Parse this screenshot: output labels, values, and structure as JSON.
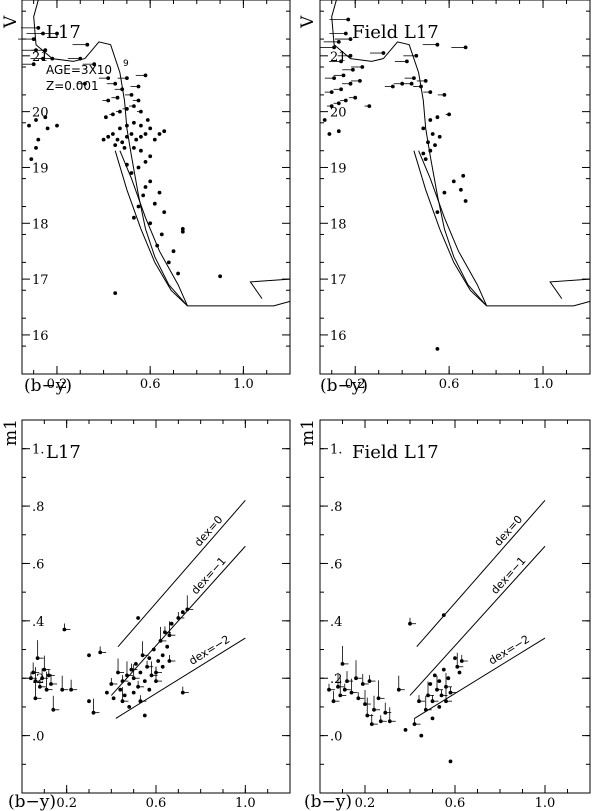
{
  "chart_data": [
    {
      "type": "scatter",
      "title": "L17",
      "annotations": [
        "AGE=3X10",
        "9",
        "Z=0.001"
      ],
      "xlabel": "(b−y)",
      "ylabel": "V",
      "xlim": [
        0.05,
        1.2
      ],
      "ylim": [
        22.0,
        15.3
      ],
      "y_inverted": true,
      "x_ticks": [
        0.2,
        0.6,
        1.0
      ],
      "y_ticks": [
        16,
        17,
        18,
        19,
        20,
        21
      ],
      "x_tick_labels": [
        "0.2",
        "0.6",
        "1.0"
      ],
      "y_tick_labels": [
        "16",
        "17",
        "18",
        "19",
        "20",
        "21"
      ],
      "isochrone": {
        "lower_ms": [
          [
            0.12,
            22.0
          ],
          [
            0.1,
            21.7
          ],
          [
            0.11,
            21.2
          ],
          [
            0.18,
            20.95
          ],
          [
            0.27,
            20.9
          ],
          [
            0.32,
            20.95
          ],
          [
            0.38,
            21.25
          ],
          [
            0.43,
            21.2
          ],
          [
            0.47,
            20.7
          ],
          [
            0.49,
            20.2
          ],
          [
            0.5,
            19.7
          ],
          [
            0.52,
            19.2
          ],
          [
            0.55,
            18.5
          ],
          [
            0.58,
            17.9
          ],
          [
            0.62,
            17.4
          ],
          [
            0.68,
            16.9
          ],
          [
            0.76,
            16.52
          ]
        ],
        "sgb_band": [
          [
            0.45,
            19.3
          ],
          [
            0.5,
            18.6
          ],
          [
            0.56,
            17.9
          ],
          [
            0.62,
            17.3
          ],
          [
            0.69,
            16.8
          ],
          [
            0.76,
            16.52
          ],
          [
            0.72,
            16.9
          ],
          [
            0.64,
            17.5
          ],
          [
            0.58,
            18.1
          ],
          [
            0.52,
            18.8
          ],
          [
            0.47,
            19.3
          ]
        ],
        "tip_branch": [
          [
            0.76,
            16.52
          ],
          [
            1.13,
            16.52
          ],
          [
            1.2,
            16.6
          ]
        ],
        "hb_hook": [
          [
            1.08,
            16.65
          ],
          [
            1.03,
            16.95
          ],
          [
            1.2,
            17.0
          ]
        ]
      },
      "points": [
        [
          0.09,
          19.15
        ],
        [
          0.11,
          19.35
        ],
        [
          0.12,
          19.5
        ],
        [
          0.08,
          19.75
        ],
        [
          0.11,
          19.85
        ],
        [
          0.15,
          19.9
        ],
        [
          0.16,
          19.7
        ],
        [
          0.2,
          19.75
        ],
        [
          0.1,
          20.85
        ],
        [
          0.14,
          20.95
        ],
        [
          0.18,
          20.95
        ],
        [
          0.11,
          21.1
        ],
        [
          0.15,
          21.1
        ],
        [
          0.1,
          21.3
        ],
        [
          0.14,
          21.4
        ],
        [
          0.2,
          21.4
        ],
        [
          0.12,
          21.5
        ],
        [
          0.32,
          20.5
        ],
        [
          0.36,
          20.85
        ],
        [
          0.3,
          20.95
        ],
        [
          0.33,
          21.2
        ],
        [
          0.42,
          20.6
        ],
        [
          0.45,
          20.5
        ],
        [
          0.45,
          16.75
        ],
        [
          0.53,
          18.1
        ],
        [
          0.55,
          18.3
        ],
        [
          0.57,
          18.5
        ],
        [
          0.6,
          18.0
        ],
        [
          0.63,
          17.6
        ],
        [
          0.65,
          17.8
        ],
        [
          0.68,
          17.3
        ],
        [
          0.7,
          17.5
        ],
        [
          0.72,
          17.1
        ],
        [
          0.74,
          17.9
        ],
        [
          0.9,
          17.05
        ],
        [
          0.74,
          17.85
        ],
        [
          0.66,
          18.2
        ],
        [
          0.62,
          18.35
        ],
        [
          0.58,
          18.65
        ],
        [
          0.6,
          18.75
        ],
        [
          0.64,
          18.55
        ],
        [
          0.5,
          19.05
        ],
        [
          0.52,
          18.9
        ],
        [
          0.55,
          19.0
        ],
        [
          0.58,
          19.1
        ],
        [
          0.6,
          19.2
        ],
        [
          0.56,
          19.3
        ],
        [
          0.53,
          19.35
        ],
        [
          0.4,
          19.5
        ],
        [
          0.42,
          19.55
        ],
        [
          0.44,
          19.6
        ],
        [
          0.46,
          19.5
        ],
        [
          0.48,
          19.45
        ],
        [
          0.5,
          19.55
        ],
        [
          0.52,
          19.6
        ],
        [
          0.54,
          19.5
        ],
        [
          0.56,
          19.55
        ],
        [
          0.58,
          19.6
        ],
        [
          0.6,
          19.7
        ],
        [
          0.62,
          19.5
        ],
        [
          0.64,
          19.6
        ],
        [
          0.66,
          19.65
        ],
        [
          0.47,
          19.7
        ],
        [
          0.5,
          19.75
        ],
        [
          0.53,
          19.8
        ],
        [
          0.56,
          19.75
        ],
        [
          0.59,
          19.85
        ],
        [
          0.45,
          19.4
        ],
        [
          0.49,
          19.35
        ],
        [
          0.41,
          19.9
        ],
        [
          0.44,
          19.95
        ],
        [
          0.47,
          20.0
        ],
        [
          0.5,
          20.05
        ],
        [
          0.53,
          20.1
        ],
        [
          0.56,
          20.0
        ],
        [
          0.42,
          20.2
        ],
        [
          0.46,
          20.25
        ],
        [
          0.52,
          20.3
        ],
        [
          0.55,
          20.2
        ],
        [
          0.48,
          20.4
        ],
        [
          0.5,
          20.6
        ],
        [
          0.55,
          20.45
        ],
        [
          0.58,
          20.65
        ]
      ]
    },
    {
      "type": "scatter",
      "title": "Field L17",
      "xlabel": "(b−y)",
      "ylabel": "V",
      "xlim": [
        0.05,
        1.2
      ],
      "ylim": [
        22.0,
        15.3
      ],
      "y_inverted": true,
      "x_ticks": [
        0.2,
        0.6,
        1.0
      ],
      "y_ticks": [
        16,
        17,
        18,
        19,
        20,
        21
      ],
      "x_tick_labels": [
        "0.2",
        "0.6",
        "1.0"
      ],
      "y_tick_labels": [
        "16",
        "17",
        "18",
        "19",
        "20",
        "21"
      ],
      "points": [
        [
          0.55,
          15.75
        ],
        [
          0.55,
          18.2
        ],
        [
          0.58,
          18.55
        ],
        [
          0.62,
          18.75
        ],
        [
          0.65,
          18.6
        ],
        [
          0.66,
          18.85
        ],
        [
          0.67,
          18.4
        ],
        [
          0.49,
          19.25
        ],
        [
          0.5,
          19.15
        ],
        [
          0.52,
          19.3
        ],
        [
          0.54,
          19.4
        ],
        [
          0.51,
          19.45
        ],
        [
          0.53,
          19.6
        ],
        [
          0.56,
          19.55
        ],
        [
          0.49,
          19.7
        ],
        [
          0.52,
          19.85
        ],
        [
          0.55,
          19.9
        ],
        [
          0.09,
          19.6
        ],
        [
          0.13,
          19.65
        ],
        [
          0.07,
          19.85
        ],
        [
          0.1,
          20.1
        ],
        [
          0.13,
          20.15
        ],
        [
          0.16,
          20.2
        ],
        [
          0.2,
          20.25
        ],
        [
          0.1,
          20.35
        ],
        [
          0.14,
          20.4
        ],
        [
          0.18,
          20.5
        ],
        [
          0.22,
          20.55
        ],
        [
          0.11,
          20.6
        ],
        [
          0.15,
          20.65
        ],
        [
          0.19,
          20.75
        ],
        [
          0.23,
          20.8
        ],
        [
          0.14,
          20.9
        ],
        [
          0.18,
          21.0
        ],
        [
          0.11,
          21.15
        ],
        [
          0.13,
          21.25
        ],
        [
          0.18,
          21.3
        ],
        [
          0.16,
          21.4
        ],
        [
          0.17,
          21.65
        ],
        [
          0.26,
          20.1
        ],
        [
          0.36,
          20.45
        ],
        [
          0.4,
          20.5
        ],
        [
          0.44,
          20.5
        ],
        [
          0.48,
          20.45
        ],
        [
          0.52,
          20.35
        ],
        [
          0.58,
          20.3
        ],
        [
          0.45,
          20.6
        ],
        [
          0.5,
          20.55
        ],
        [
          0.42,
          20.9
        ],
        [
          0.46,
          21.0
        ],
        [
          0.32,
          21.05
        ],
        [
          0.55,
          21.2
        ],
        [
          0.67,
          21.15
        ],
        [
          0.6,
          19.95
        ]
      ]
    },
    {
      "type": "scatter",
      "title": "L17",
      "xlabel": "(b−y)",
      "ylabel": "m1",
      "xlim": [
        0.0,
        1.2
      ],
      "ylim": [
        -0.2,
        1.1
      ],
      "x_ticks": [
        0.2,
        0.6,
        1.0
      ],
      "y_ticks": [
        0.0,
        0.2,
        0.4,
        0.6,
        0.8,
        1.0
      ],
      "x_tick_labels": [
        "0.2",
        "0.6",
        "1.0"
      ],
      "y_tick_labels": [
        ".0",
        ".2",
        ".4",
        ".6",
        ".8",
        "1."
      ],
      "reference_lines": [
        {
          "label": "dex=0",
          "from": [
            0.43,
            0.31
          ],
          "to": [
            1.0,
            0.82
          ]
        },
        {
          "label": "dex=−1",
          "from": [
            0.4,
            0.14
          ],
          "to": [
            1.0,
            0.66
          ]
        },
        {
          "label": "dex=−2",
          "from": [
            0.42,
            0.06
          ],
          "to": [
            1.0,
            0.34
          ]
        }
      ],
      "points": [
        [
          0.04,
          0.2
        ],
        [
          0.05,
          0.22
        ],
        [
          0.06,
          0.19
        ],
        [
          0.07,
          0.27
        ],
        [
          0.08,
          0.17
        ],
        [
          0.09,
          0.2
        ],
        [
          0.1,
          0.23
        ],
        [
          0.11,
          0.16
        ],
        [
          0.12,
          0.21
        ],
        [
          0.13,
          0.18
        ],
        [
          0.14,
          0.09
        ],
        [
          0.06,
          0.13
        ],
        [
          0.19,
          0.37
        ],
        [
          0.22,
          0.16
        ],
        [
          0.18,
          0.16
        ],
        [
          0.3,
          0.28
        ],
        [
          0.35,
          0.29
        ],
        [
          0.3,
          0.12
        ],
        [
          0.32,
          0.08
        ],
        [
          0.38,
          0.15
        ],
        [
          0.4,
          0.18
        ],
        [
          0.41,
          0.13
        ],
        [
          0.43,
          0.22
        ],
        [
          0.44,
          0.16
        ],
        [
          0.45,
          0.19
        ],
        [
          0.46,
          0.14
        ],
        [
          0.47,
          0.21
        ],
        [
          0.48,
          0.18
        ],
        [
          0.49,
          0.23
        ],
        [
          0.5,
          0.15
        ],
        [
          0.5,
          0.2
        ],
        [
          0.51,
          0.25
        ],
        [
          0.52,
          0.17
        ],
        [
          0.53,
          0.22
        ],
        [
          0.54,
          0.28
        ],
        [
          0.55,
          0.19
        ],
        [
          0.56,
          0.24
        ],
        [
          0.57,
          0.16
        ],
        [
          0.58,
          0.21
        ],
        [
          0.59,
          0.3
        ],
        [
          0.6,
          0.22
        ],
        [
          0.61,
          0.26
        ],
        [
          0.62,
          0.33
        ],
        [
          0.63,
          0.28
        ],
        [
          0.64,
          0.36
        ],
        [
          0.65,
          0.31
        ],
        [
          0.66,
          0.35
        ],
        [
          0.67,
          0.39
        ],
        [
          0.7,
          0.41
        ],
        [
          0.72,
          0.43
        ],
        [
          0.74,
          0.44
        ],
        [
          0.52,
          0.41
        ],
        [
          0.72,
          0.15
        ],
        [
          0.55,
          0.07
        ],
        [
          0.45,
          0.12
        ],
        [
          0.48,
          0.1
        ],
        [
          0.53,
          0.12
        ],
        [
          0.57,
          0.27
        ],
        [
          0.6,
          0.19
        ],
        [
          0.63,
          0.24
        ],
        [
          0.66,
          0.26
        ]
      ]
    },
    {
      "type": "scatter",
      "title": "Field L17",
      "xlabel": "(b−y)",
      "ylabel": "m1",
      "xlim": [
        0.0,
        1.2
      ],
      "ylim": [
        -0.2,
        1.1
      ],
      "x_ticks": [
        0.2,
        0.6,
        1.0
      ],
      "y_ticks": [
        0.0,
        0.2,
        0.4,
        0.6,
        0.8,
        1.0
      ],
      "x_tick_labels": [
        "0.2",
        "0.6",
        "1.0"
      ],
      "y_tick_labels": [
        ".0",
        ".2",
        ".4",
        ".6",
        ".8",
        "1."
      ],
      "reference_lines": [
        {
          "label": "dex=0",
          "from": [
            0.43,
            0.31
          ],
          "to": [
            1.0,
            0.82
          ]
        },
        {
          "label": "dex=−1",
          "from": [
            0.4,
            0.14
          ],
          "to": [
            1.0,
            0.66
          ]
        },
        {
          "label": "dex=−2",
          "from": [
            0.42,
            0.06
          ],
          "to": [
            1.0,
            0.34
          ]
        }
      ],
      "points": [
        [
          0.04,
          0.16
        ],
        [
          0.06,
          0.12
        ],
        [
          0.08,
          0.17
        ],
        [
          0.09,
          0.14
        ],
        [
          0.11,
          0.16
        ],
        [
          0.12,
          0.19
        ],
        [
          0.14,
          0.15
        ],
        [
          0.16,
          0.2
        ],
        [
          0.17,
          0.13
        ],
        [
          0.19,
          0.18
        ],
        [
          0.2,
          0.11
        ],
        [
          0.21,
          0.07
        ],
        [
          0.22,
          0.19
        ],
        [
          0.23,
          0.04
        ],
        [
          0.24,
          0.09
        ],
        [
          0.26,
          0.13
        ],
        [
          0.27,
          0.05
        ],
        [
          0.29,
          0.08
        ],
        [
          0.31,
          0.05
        ],
        [
          0.1,
          0.25
        ],
        [
          0.4,
          0.39
        ],
        [
          0.55,
          0.42
        ],
        [
          0.35,
          0.16
        ],
        [
          0.38,
          0.02
        ],
        [
          0.42,
          0.04
        ],
        [
          0.45,
          0.0
        ],
        [
          0.48,
          0.14
        ],
        [
          0.49,
          0.18
        ],
        [
          0.5,
          0.12
        ],
        [
          0.51,
          0.21
        ],
        [
          0.52,
          0.16
        ],
        [
          0.53,
          0.19
        ],
        [
          0.54,
          0.14
        ],
        [
          0.55,
          0.23
        ],
        [
          0.56,
          0.17
        ],
        [
          0.57,
          0.2
        ],
        [
          0.58,
          0.15
        ],
        [
          0.6,
          0.27
        ],
        [
          0.61,
          0.24
        ],
        [
          0.62,
          0.22
        ],
        [
          0.63,
          0.26
        ],
        [
          0.58,
          -0.09
        ],
        [
          0.47,
          0.09
        ],
        [
          0.5,
          0.06
        ],
        [
          0.44,
          0.12
        ],
        [
          0.53,
          0.1
        ],
        [
          0.56,
          0.12
        ]
      ]
    }
  ]
}
